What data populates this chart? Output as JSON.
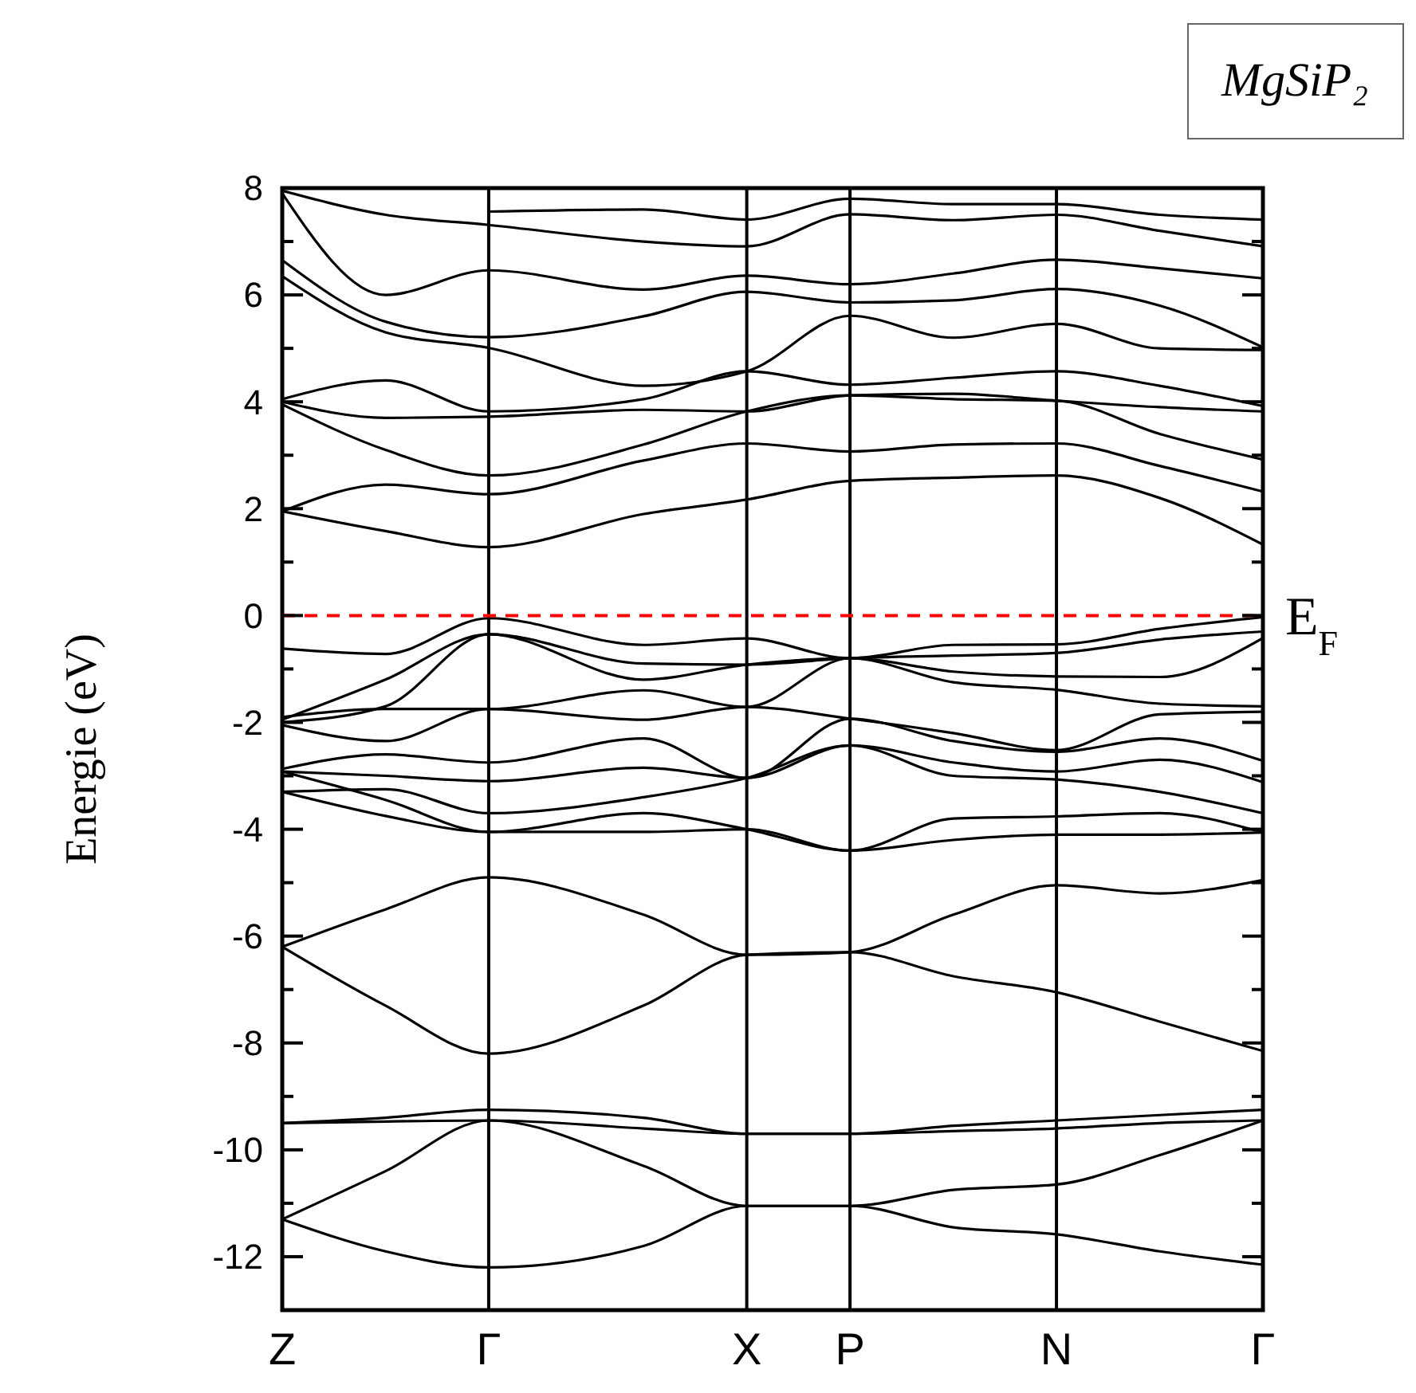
{
  "chart_data": {
    "type": "line",
    "title": "MgSiP₂",
    "ylabel": "Energie (eV)",
    "categories": [
      "Z",
      null,
      null,
      null,
      "Γ",
      null,
      null,
      null,
      null,
      "X",
      null,
      "P",
      null,
      null,
      null,
      "N",
      null,
      null,
      null,
      "Γ"
    ],
    "ylim": [
      -13,
      8
    ],
    "yticks": [
      -12,
      {
        "value": -11,
        "label": null
      },
      -10,
      {
        "value": -9,
        "label": null
      },
      -8,
      {
        "value": -7,
        "label": null
      },
      -6,
      {
        "value": -5,
        "label": null
      },
      -4,
      {
        "value": -3,
        "label": null
      },
      -2,
      {
        "value": -1,
        "label": null
      },
      0,
      {
        "value": 1,
        "label": null
      },
      2,
      {
        "value": 3,
        "label": null
      },
      4,
      {
        "value": 5,
        "label": null
      },
      6,
      {
        "value": 7,
        "label": null
      },
      8
    ],
    "grid": "x",
    "marker": "none",
    "line_style": "solid",
    "ref_lines": [
      {
        "axis": "y",
        "value": 0,
        "label": "E$_{F}$",
        "color": "#ff0000",
        "line_style": "dashed"
      }
    ],
    "series": [
      {
        "color": "#000000",
        "values": [
          -11.3,
          null,
          -11.9,
          null,
          -12.2,
          null,
          null,
          -11.8,
          null,
          -11.05,
          null,
          -11.05,
          null,
          -11.45,
          null,
          -11.58,
          null,
          -11.9,
          null,
          -12.15
        ]
      },
      {
        "color": "#000000",
        "values": [
          -11.3,
          null,
          -10.4,
          null,
          -9.45,
          null,
          null,
          -10.3,
          null,
          -11.05,
          null,
          -11.05,
          null,
          -10.75,
          null,
          -10.65,
          null,
          -10.1,
          null,
          -9.45
        ]
      },
      {
        "color": "#000000",
        "values": [
          -9.5,
          null,
          -9.47,
          null,
          -9.45,
          null,
          null,
          -9.6,
          null,
          -9.7,
          null,
          -9.7,
          null,
          -9.65,
          null,
          -9.6,
          null,
          -9.5,
          null,
          -9.45
        ]
      },
      {
        "color": "#000000",
        "values": [
          -9.5,
          null,
          -9.4,
          null,
          -9.25,
          null,
          null,
          -9.4,
          null,
          -9.7,
          null,
          -9.7,
          null,
          -9.55,
          null,
          -9.45,
          null,
          -9.35,
          null,
          -9.25
        ]
      },
      {
        "color": "#000000",
        "values": [
          -6.2,
          null,
          -7.3,
          null,
          -8.2,
          null,
          null,
          -7.3,
          null,
          -6.35,
          null,
          -6.3,
          null,
          -6.75,
          null,
          -7.05,
          null,
          -7.6,
          null,
          -8.15
        ]
      },
      {
        "color": "#000000",
        "values": [
          -6.2,
          null,
          -5.5,
          null,
          -4.9,
          null,
          null,
          -5.6,
          null,
          -6.35,
          null,
          -6.3,
          null,
          -5.6,
          null,
          -5.05,
          null,
          -5.2,
          null,
          -4.95
        ]
      },
      {
        "color": "#000000",
        "values": [
          -3.3,
          null,
          -3.75,
          null,
          -4.05,
          null,
          null,
          -4.05,
          null,
          -4.0,
          null,
          -4.4,
          null,
          -4.2,
          null,
          -4.1,
          null,
          -4.1,
          null,
          -4.06
        ]
      },
      {
        "color": "#000000",
        "values": [
          -2.92,
          null,
          -3.45,
          null,
          -4.05,
          null,
          null,
          -3.7,
          null,
          -4.0,
          null,
          -4.4,
          null,
          -3.8,
          null,
          -3.76,
          null,
          -3.7,
          null,
          -4.06
        ]
      },
      {
        "color": "#000000",
        "values": [
          -3.3,
          null,
          -3.25,
          null,
          -3.7,
          null,
          null,
          -3.4,
          null,
          -3.04,
          null,
          -2.43,
          null,
          -3.0,
          null,
          -3.07,
          null,
          -3.3,
          null,
          -3.7
        ]
      },
      {
        "color": "#000000",
        "values": [
          -2.92,
          null,
          -3.0,
          null,
          -3.1,
          null,
          null,
          -2.85,
          null,
          -3.04,
          null,
          -2.43,
          null,
          -2.75,
          null,
          -2.92,
          null,
          -2.7,
          null,
          -3.12
        ]
      },
      {
        "color": "#000000",
        "values": [
          -2.87,
          null,
          -2.6,
          null,
          -2.75,
          null,
          null,
          -2.3,
          null,
          -3.04,
          null,
          -1.93,
          null,
          -2.35,
          null,
          -2.55,
          null,
          -2.3,
          null,
          -2.72
        ]
      },
      {
        "color": "#000000",
        "values": [
          -2.05,
          null,
          -2.35,
          null,
          -1.75,
          null,
          null,
          -1.95,
          null,
          -1.71,
          null,
          -1.93,
          null,
          -2.2,
          null,
          -2.52,
          null,
          -1.85,
          null,
          -1.8
        ]
      },
      {
        "color": "#000000",
        "values": [
          -1.9,
          null,
          -1.75,
          null,
          -1.75,
          null,
          null,
          -1.4,
          null,
          -1.71,
          null,
          -0.8,
          null,
          -1.25,
          null,
          -1.39,
          null,
          -1.65,
          null,
          -1.7
        ]
      },
      {
        "color": "#000000",
        "values": [
          -2.0,
          null,
          -1.7,
          null,
          -0.35,
          null,
          null,
          -1.2,
          null,
          -0.92,
          null,
          -0.8,
          null,
          -1.05,
          null,
          -1.14,
          null,
          -1.15,
          null,
          -0.42
        ]
      },
      {
        "color": "#000000",
        "values": [
          -1.95,
          null,
          -1.2,
          null,
          -0.35,
          null,
          null,
          -0.9,
          null,
          -0.92,
          null,
          -0.8,
          null,
          -0.75,
          null,
          -0.7,
          null,
          -0.45,
          null,
          -0.3
        ]
      },
      {
        "color": "#000000",
        "values": [
          -0.62,
          null,
          -0.72,
          null,
          -0.05,
          null,
          null,
          -0.55,
          null,
          -0.43,
          null,
          -0.8,
          null,
          -0.55,
          null,
          -0.54,
          null,
          -0.25,
          null,
          -0.03
        ]
      },
      {
        "color": "#000000",
        "values": [
          1.95,
          null,
          1.58,
          null,
          1.28,
          null,
          null,
          1.9,
          null,
          2.17,
          null,
          2.52,
          null,
          2.58,
          null,
          2.62,
          null,
          2.2,
          null,
          1.33
        ]
      },
      {
        "color": "#000000",
        "values": [
          1.95,
          null,
          2.45,
          null,
          2.27,
          null,
          null,
          2.9,
          null,
          3.22,
          null,
          3.07,
          null,
          3.2,
          null,
          3.22,
          null,
          2.8,
          null,
          2.32
        ]
      },
      {
        "color": "#000000",
        "values": [
          3.95,
          null,
          3.1,
          null,
          2.62,
          null,
          null,
          3.2,
          null,
          3.82,
          null,
          4.12,
          null,
          4.05,
          null,
          4.02,
          null,
          3.4,
          null,
          2.92
        ]
      },
      {
        "color": "#000000",
        "values": [
          4.0,
          null,
          3.7,
          null,
          3.72,
          null,
          null,
          3.85,
          null,
          3.82,
          null,
          4.12,
          null,
          4.15,
          null,
          4.02,
          null,
          3.9,
          null,
          3.82
        ]
      },
      {
        "color": "#000000",
        "values": [
          4.05,
          null,
          4.4,
          null,
          3.82,
          null,
          null,
          4.05,
          null,
          4.57,
          null,
          4.32,
          null,
          4.45,
          null,
          4.57,
          null,
          4.3,
          null,
          3.92
        ]
      },
      {
        "color": "#000000",
        "values": [
          6.35,
          null,
          5.3,
          null,
          5.01,
          null,
          null,
          4.3,
          null,
          4.57,
          null,
          5.61,
          null,
          5.2,
          null,
          5.46,
          null,
          5.0,
          null,
          4.97
        ]
      },
      {
        "color": "#000000",
        "values": [
          6.65,
          null,
          5.5,
          null,
          5.21,
          null,
          null,
          5.6,
          null,
          6.06,
          null,
          5.86,
          null,
          5.9,
          null,
          6.11,
          null,
          5.8,
          null,
          5.02
        ]
      },
      {
        "color": "#000000",
        "values": [
          7.9,
          null,
          6.0,
          null,
          6.46,
          null,
          null,
          6.1,
          null,
          6.36,
          null,
          6.2,
          null,
          6.4,
          null,
          6.66,
          null,
          6.5,
          null,
          6.31
        ]
      },
      {
        "color": "#000000",
        "values": [
          7.95,
          null,
          7.5,
          null,
          7.31,
          null,
          null,
          7.0,
          null,
          6.91,
          null,
          7.51,
          null,
          7.4,
          null,
          7.5,
          null,
          7.2,
          null,
          6.91
        ]
      },
      {
        "color": "#000000",
        "values": [
          null,
          null,
          null,
          null,
          7.56,
          null,
          null,
          7.6,
          null,
          7.41,
          null,
          7.8,
          null,
          7.7,
          null,
          7.7,
          null,
          7.5,
          null,
          7.41
        ]
      }
    ]
  }
}
